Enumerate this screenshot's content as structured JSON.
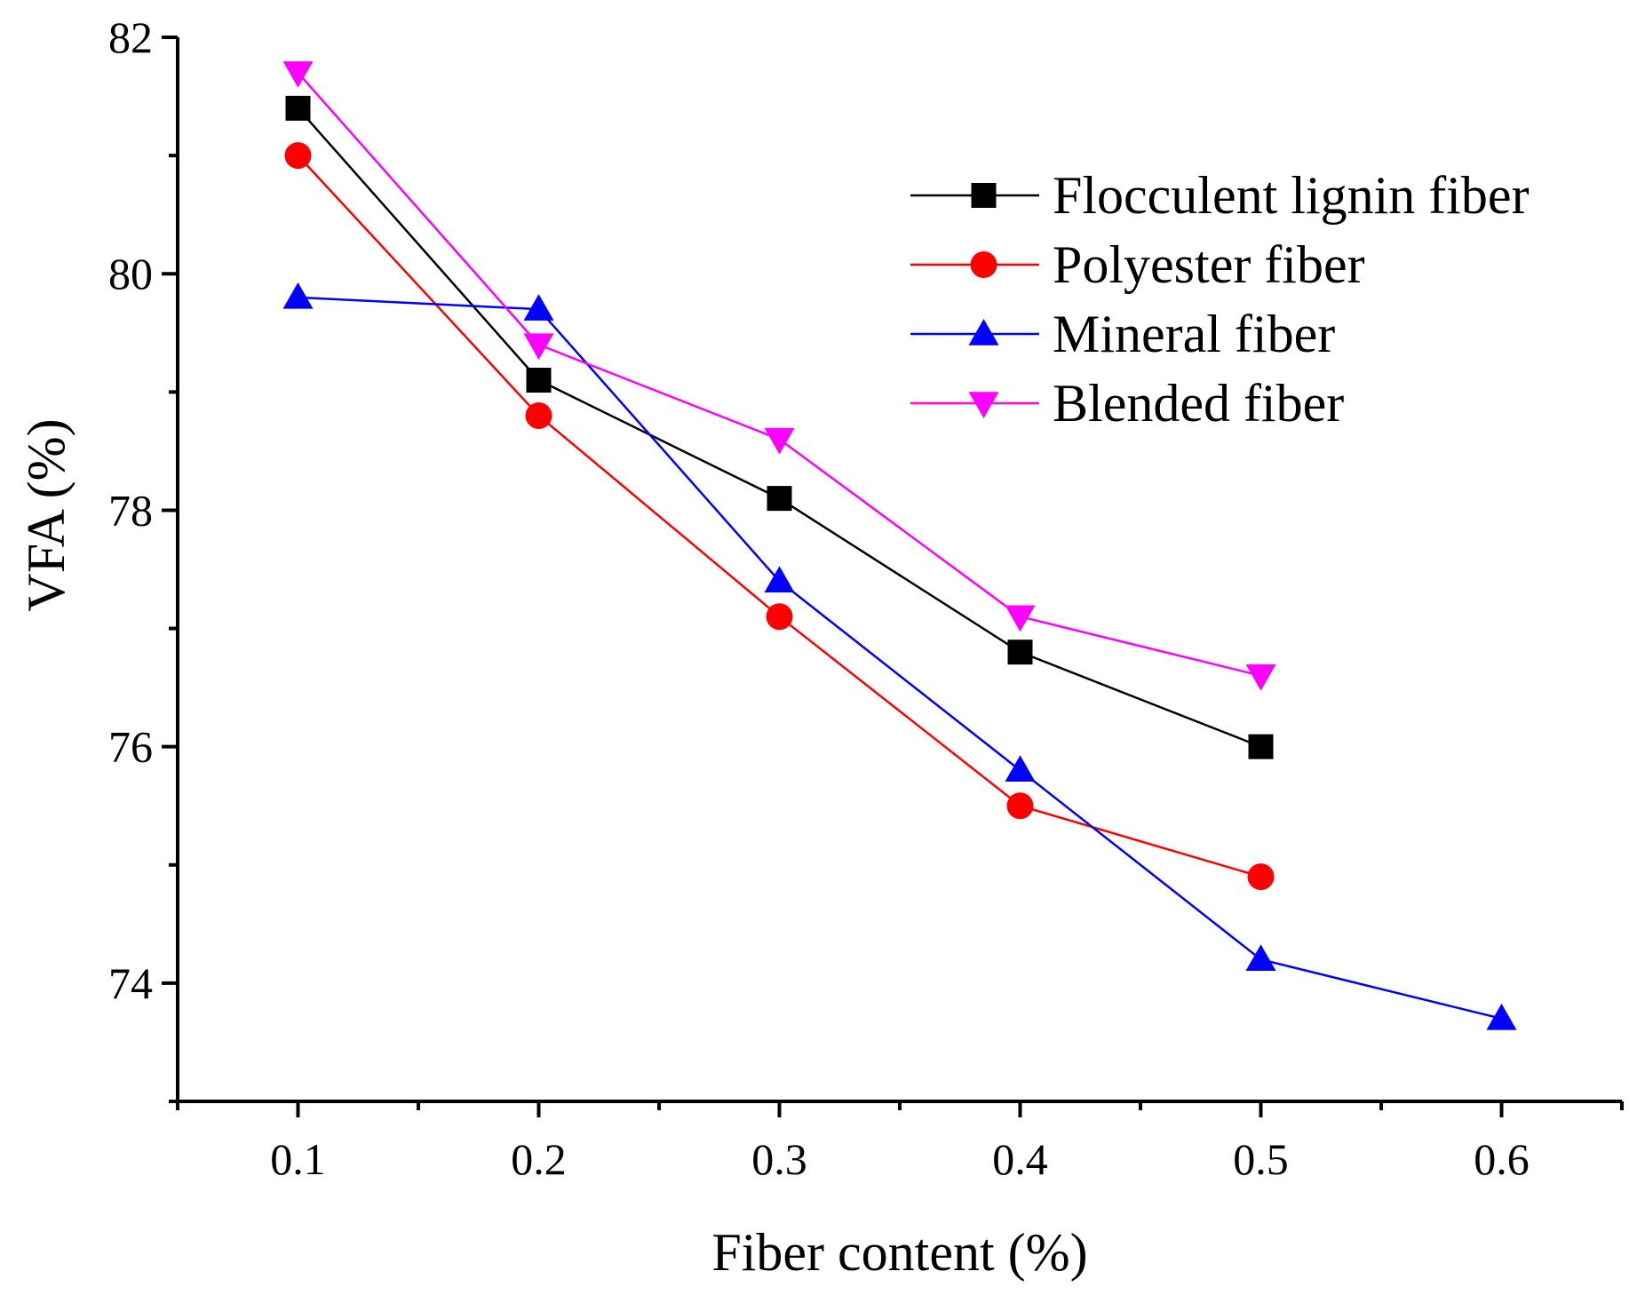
{
  "chart_data": {
    "type": "line",
    "title": "",
    "xlabel": "Fiber content (%)",
    "ylabel": "VFA (%)",
    "xlim": [
      0.05,
      0.65
    ],
    "ylim": [
      73,
      82
    ],
    "x_ticks": [
      0.1,
      0.2,
      0.3,
      0.4,
      0.5,
      0.6
    ],
    "x_tick_labels": [
      "0.1",
      "0.2",
      "0.3",
      "0.4",
      "0.5",
      "0.6"
    ],
    "y_ticks": [
      74,
      76,
      78,
      80,
      82
    ],
    "y_tick_labels": [
      "74",
      "76",
      "78",
      "80",
      "82"
    ],
    "grid": false,
    "legend_position": "top-right",
    "series": [
      {
        "name": "Flocculent lignin fiber",
        "color": "#000000",
        "marker": "square",
        "x": [
          0.1,
          0.2,
          0.3,
          0.4,
          0.5
        ],
        "values": [
          81.4,
          79.1,
          78.1,
          76.8,
          76.0
        ]
      },
      {
        "name": "Polyester fiber",
        "color": "#ff0000",
        "marker": "circle",
        "x": [
          0.1,
          0.2,
          0.3,
          0.4,
          0.5
        ],
        "values": [
          81.0,
          78.8,
          77.1,
          75.5,
          74.9
        ]
      },
      {
        "name": "Mineral fiber",
        "color": "#0000ff",
        "marker": "triangle-up",
        "x": [
          0.1,
          0.2,
          0.3,
          0.4,
          0.5,
          0.6
        ],
        "values": [
          79.8,
          79.7,
          77.4,
          75.8,
          74.2,
          73.7
        ]
      },
      {
        "name": "Blended fiber",
        "color": "#ff00ff",
        "marker": "triangle-down",
        "x": [
          0.1,
          0.2,
          0.3,
          0.4,
          0.5
        ],
        "values": [
          81.7,
          79.4,
          78.6,
          77.1,
          76.6
        ]
      }
    ]
  }
}
